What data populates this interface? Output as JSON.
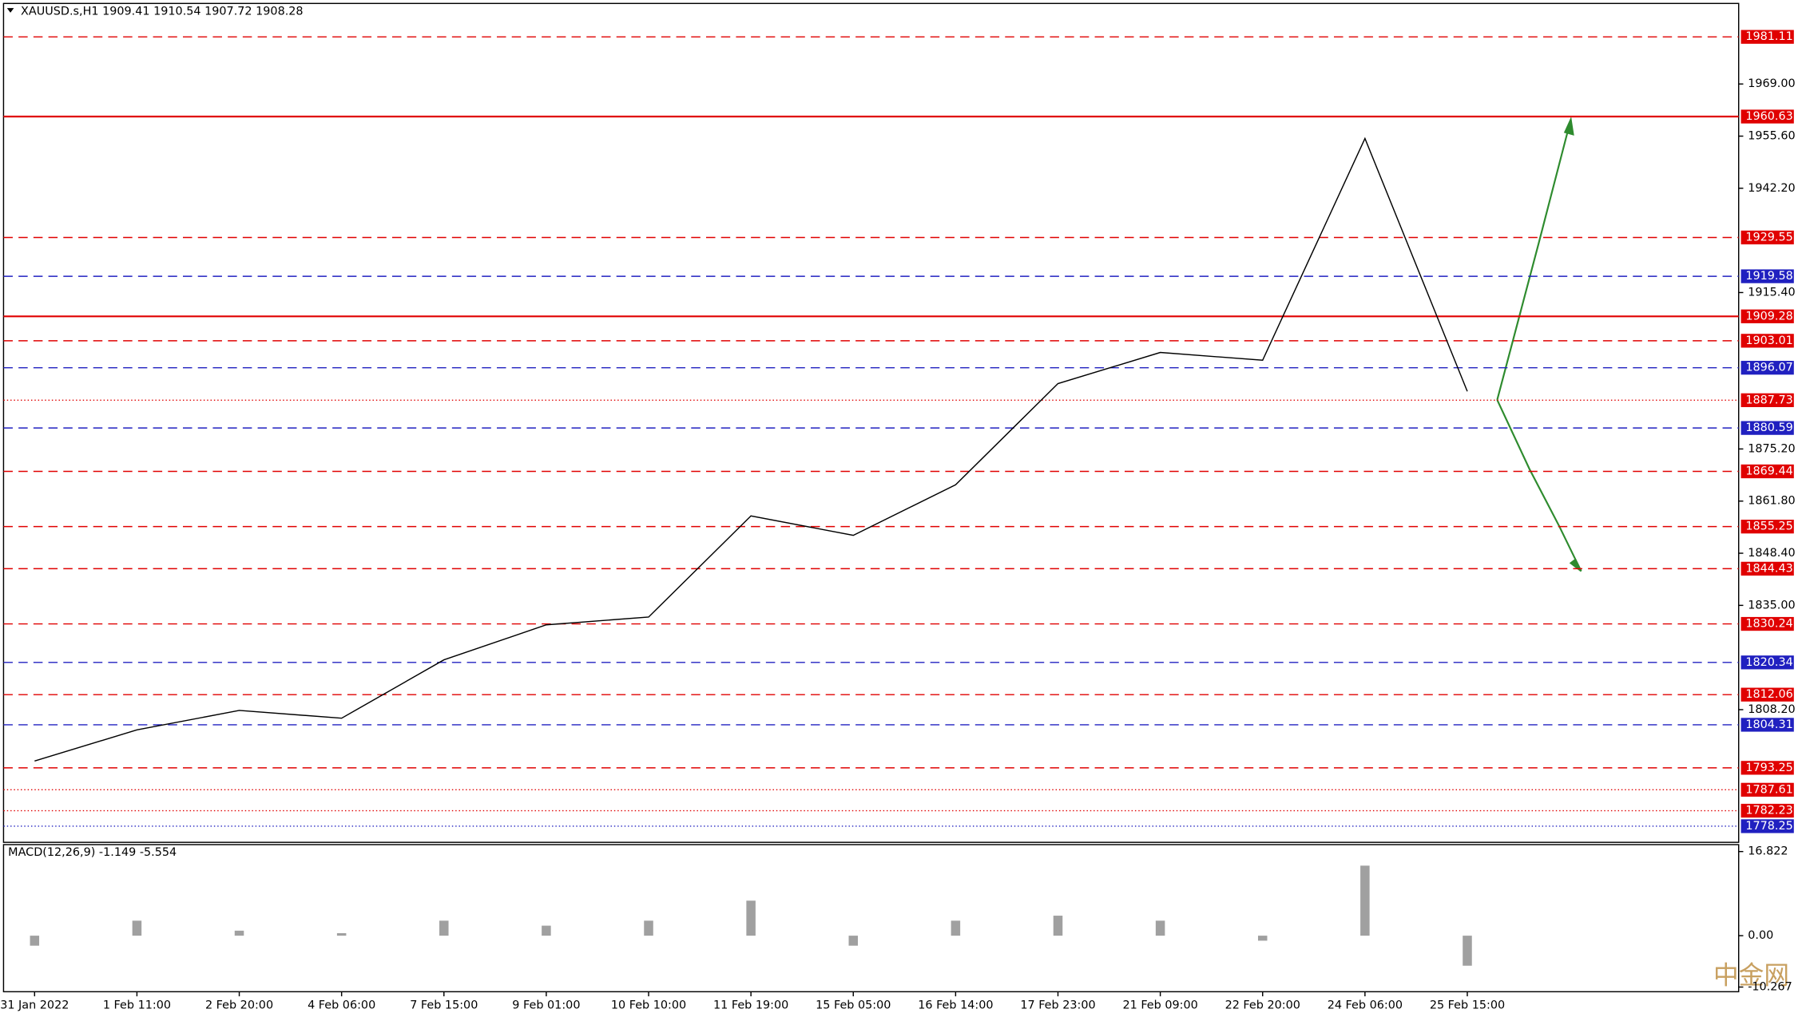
{
  "chart_data": [
    {
      "type": "line",
      "title": "XAUUSD.s,H1  1909.41 1910.54 1907.72 1908.28",
      "categories": [
        "31 Jan 2022",
        "1 Feb 11:00",
        "2 Feb 20:00",
        "4 Feb 06:00",
        "7 Feb 15:00",
        "9 Feb 01:00",
        "10 Feb 10:00",
        "11 Feb 19:00",
        "15 Feb 05:00",
        "16 Feb 14:00",
        "17 Feb 23:00",
        "21 Feb 09:00",
        "22 Feb 20:00",
        "24 Feb 06:00",
        "25 Feb 15:00"
      ],
      "values": [
        1795,
        1803,
        1808,
        1806,
        1821,
        1830,
        1832,
        1858,
        1853,
        1866,
        1892,
        1900,
        1898,
        1955,
        1890
      ],
      "color": "#000000",
      "ylim": [
        1774.1,
        1989.7
      ],
      "yticks": [
        {
          "value": 1969.0,
          "label": "1969.00"
        },
        {
          "value": 1955.6,
          "label": "1955.60"
        },
        {
          "value": 1942.2,
          "label": "1942.20"
        },
        {
          "value": 1915.4,
          "label": "1915.40"
        },
        {
          "value": 1875.2,
          "label": "1875.20"
        },
        {
          "value": 1861.8,
          "label": "1861.80"
        },
        {
          "value": 1848.4,
          "label": "1848.40"
        },
        {
          "value": 1835.0,
          "label": "1835.00"
        },
        {
          "value": 1808.2,
          "label": "1808.20"
        }
      ],
      "levels": [
        {
          "value": 1981.11,
          "color": "#e00000",
          "style": "dash"
        },
        {
          "value": 1960.63,
          "color": "#e00000",
          "style": "solid"
        },
        {
          "value": 1929.55,
          "color": "#e00000",
          "style": "dash"
        },
        {
          "value": 1919.58,
          "color": "#2020c0",
          "style": "dash"
        },
        {
          "value": 1909.28,
          "color": "#e00000",
          "style": "solid"
        },
        {
          "value": 1903.01,
          "color": "#e00000",
          "style": "dash"
        },
        {
          "value": 1896.07,
          "color": "#2020c0",
          "style": "dash"
        },
        {
          "value": 1887.73,
          "color": "#e00000",
          "style": "dot"
        },
        {
          "value": 1880.59,
          "color": "#2020c0",
          "style": "dash"
        },
        {
          "value": 1869.44,
          "color": "#e00000",
          "style": "dash"
        },
        {
          "value": 1855.25,
          "color": "#e00000",
          "style": "dash"
        },
        {
          "value": 1844.43,
          "color": "#e00000",
          "style": "dash"
        },
        {
          "value": 1830.24,
          "color": "#e00000",
          "style": "dash"
        },
        {
          "value": 1820.34,
          "color": "#2020c0",
          "style": "dash"
        },
        {
          "value": 1812.06,
          "color": "#e00000",
          "style": "dash"
        },
        {
          "value": 1804.31,
          "color": "#2020c0",
          "style": "dash"
        },
        {
          "value": 1793.25,
          "color": "#e00000",
          "style": "dash"
        },
        {
          "value": 1787.61,
          "color": "#e00000",
          "style": "dot"
        },
        {
          "value": 1782.23,
          "color": "#e00000",
          "style": "dot"
        },
        {
          "value": 1778.25,
          "color": "#2020c0",
          "style": "dot"
        }
      ]
    },
    {
      "type": "bar",
      "title": "MACD(12,26,9) -1.149 -5.554",
      "values": [
        -2,
        3,
        1,
        0.5,
        3,
        2,
        3,
        7,
        -2,
        3,
        4,
        3,
        -1,
        14,
        -6
      ],
      "color": "#a0a0a0",
      "ylim": [
        -11.2,
        18.2
      ],
      "yticks": [
        {
          "value": 16.822,
          "label": "16.822"
        },
        {
          "value": 0,
          "label": "0.00"
        },
        {
          "value": -10.267,
          "label": "-10.267"
        }
      ]
    }
  ],
  "watermark": "中金网"
}
